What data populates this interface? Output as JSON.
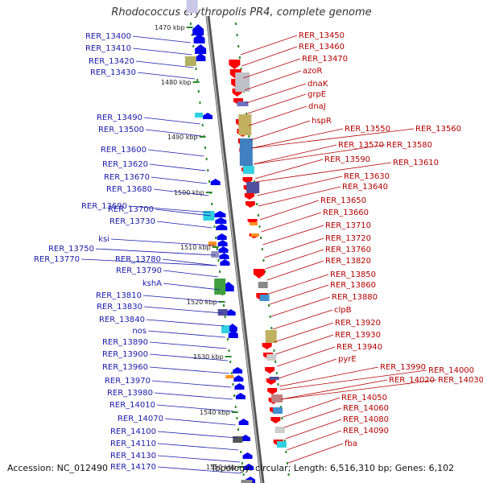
{
  "title": "Rhodococcus erythropolis PR4, complete genome",
  "accession": "Accession: NC_012490",
  "summary": "Topology: circular; Length: 6,516,310 bp; Genes: 6,102",
  "colors": {
    "forward_gene": "#0000ee",
    "reverse_gene": "#ff0000",
    "left_label": "#1a1aa8",
    "right_label": "#b20000"
  },
  "scale_labels": [
    "1470 kbp",
    "1480 kbp",
    "1490 kbp",
    "1500 kbp",
    "1510 kbp",
    "1520 kbp",
    "1530 kbp",
    "1540 kbp",
    "1550 kbp"
  ],
  "left_labels": [
    "RER_13400",
    "RER_13410",
    "RER_13420",
    "RER_13430",
    "RER_13490",
    "RER_13500",
    "RER_13600",
    "RER_13620",
    "RER_13670",
    "RER_13680",
    "RER_13690",
    "RER_13700",
    "RER_13730",
    "ksi",
    "RER_13750",
    "RER_13770",
    "RER_13780",
    "RER_13790",
    "kshA",
    "RER_13810",
    "RER_13830",
    "RER_13840",
    "nos",
    "RER_13890",
    "RER_13900",
    "RER_13960",
    "RER_13970",
    "RER_13980",
    "RER_14010",
    "RER_14070",
    "RER_14100",
    "RER_14110",
    "RER_14130",
    "RER_14170"
  ],
  "right_labels": [
    "RER_13450",
    "RER_13460",
    "RER_13470",
    "azoR",
    "dnaK",
    "grpE",
    "dnaJ",
    "hspR",
    "RER_13550",
    "RER_13560",
    "RER_13570",
    "RER_13580",
    "RER_13590",
    "RER_13610",
    "RER_13630",
    "RER_13640",
    "RER_13650",
    "RER_13660",
    "RER_13710",
    "RER_13720",
    "RER_13760",
    "RER_13820",
    "RER_13850",
    "RER_13860",
    "RER_13880",
    "clpB",
    "RER_13920",
    "RER_13930",
    "RER_13940",
    "pyrE",
    "RER_13990",
    "RER_14000",
    "RER_14020",
    "RER_14030",
    "RER_14050",
    "RER_14060",
    "RER_14080",
    "RER_14090",
    "fba"
  ]
}
